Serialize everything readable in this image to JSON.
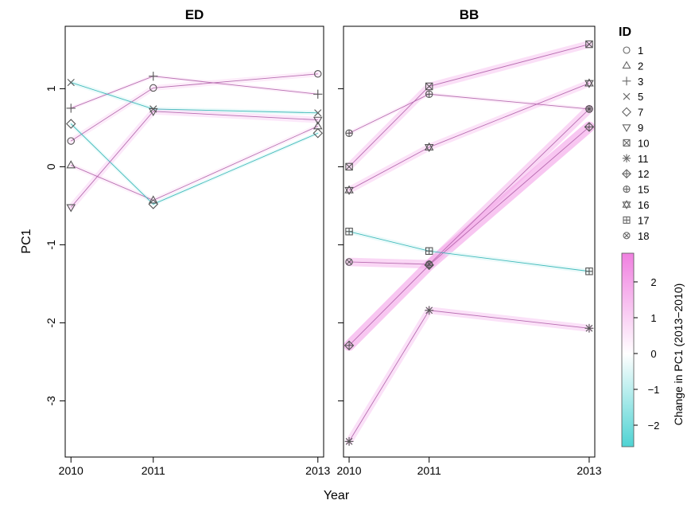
{
  "chart_data": {
    "type": "line",
    "ylabel": "PC1",
    "xlabel": "Year",
    "x_ticks": [
      2010,
      2011,
      2013
    ],
    "y_ticks": [
      -3,
      -2,
      -1,
      0,
      1
    ],
    "ylim": [
      -3.72,
      1.8
    ],
    "xlim": [
      2009.93,
      2013.07
    ],
    "legend_title": "ID",
    "legend_position": "right",
    "colorbar_title": "Change in PC1 (2013−2010)",
    "colorbar_range": [
      -2.6,
      2.8
    ],
    "colorbar_ticks": [
      -2,
      -1,
      0,
      1,
      2
    ],
    "colors": {
      "positive": "#f080e0",
      "negative": "#4fd3d3",
      "line_pos": "#b060a8",
      "line_neg": "#2fb4b4"
    },
    "panels": [
      {
        "title": "ED",
        "series": [
          {
            "id": "1",
            "marker": "circle",
            "x": [
              2010,
              2011,
              2013
            ],
            "y": [
              0.33,
              1.01,
              1.19
            ]
          },
          {
            "id": "2",
            "marker": "triangle-up",
            "x": [
              2010,
              2011,
              2013
            ],
            "y": [
              0.02,
              -0.43,
              0.52
            ]
          },
          {
            "id": "3",
            "marker": "plus",
            "x": [
              2010,
              2011,
              2013
            ],
            "y": [
              0.75,
              1.16,
              0.93
            ]
          },
          {
            "id": "5",
            "marker": "cross",
            "x": [
              2010,
              2011,
              2013
            ],
            "y": [
              1.08,
              0.74,
              0.69
            ]
          },
          {
            "id": "7",
            "marker": "diamond",
            "x": [
              2010,
              2011,
              2013
            ],
            "y": [
              0.55,
              -0.48,
              0.43
            ]
          },
          {
            "id": "9",
            "marker": "triangle-down",
            "x": [
              2010,
              2011,
              2013
            ],
            "y": [
              -0.52,
              0.71,
              0.6
            ]
          }
        ]
      },
      {
        "title": "BB",
        "series": [
          {
            "id": "10",
            "marker": "square-cross",
            "x": [
              2010,
              2011,
              2013
            ],
            "y": [
              0.0,
              1.03,
              1.57
            ]
          },
          {
            "id": "11",
            "marker": "asterisk",
            "x": [
              2010,
              2011,
              2013
            ],
            "y": [
              -3.52,
              -1.84,
              -2.07
            ]
          },
          {
            "id": "12",
            "marker": "diamond-plus",
            "x": [
              2010,
              2011,
              2013
            ],
            "y": [
              -2.29,
              -1.26,
              0.51
            ]
          },
          {
            "id": "15",
            "marker": "circle-plus",
            "x": [
              2010,
              2011,
              2013
            ],
            "y": [
              0.43,
              0.93,
              0.74
            ]
          },
          {
            "id": "16",
            "marker": "hexagram",
            "x": [
              2010,
              2011,
              2013
            ],
            "y": [
              -0.3,
              0.25,
              1.07
            ]
          },
          {
            "id": "17",
            "marker": "square-plus",
            "x": [
              2010,
              2011,
              2013
            ],
            "y": [
              -0.83,
              -1.08,
              -1.34
            ]
          },
          {
            "id": "18",
            "marker": "circle-cross",
            "x": [
              2010,
              2011,
              2013
            ],
            "y": [
              -1.22,
              -1.25,
              0.74
            ]
          }
        ]
      }
    ],
    "legend_items": [
      {
        "id": "1",
        "marker": "circle"
      },
      {
        "id": "2",
        "marker": "triangle-up"
      },
      {
        "id": "3",
        "marker": "plus"
      },
      {
        "id": "5",
        "marker": "cross"
      },
      {
        "id": "7",
        "marker": "diamond"
      },
      {
        "id": "9",
        "marker": "triangle-down"
      },
      {
        "id": "10",
        "marker": "square-cross"
      },
      {
        "id": "11",
        "marker": "asterisk"
      },
      {
        "id": "12",
        "marker": "diamond-plus"
      },
      {
        "id": "15",
        "marker": "circle-plus"
      },
      {
        "id": "16",
        "marker": "hexagram"
      },
      {
        "id": "17",
        "marker": "square-plus"
      },
      {
        "id": "18",
        "marker": "circle-cross"
      }
    ]
  }
}
